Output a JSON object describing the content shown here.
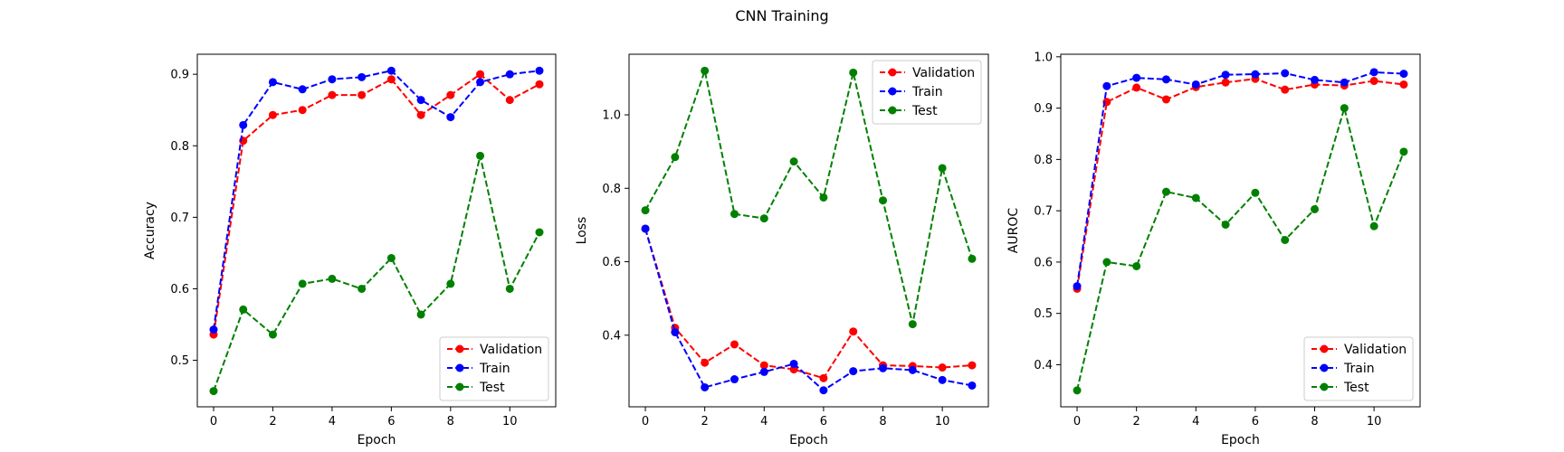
{
  "figure": {
    "title": "CNN Training"
  },
  "chart_data": [
    {
      "type": "line",
      "title": "",
      "xlabel": "Epoch",
      "ylabel": "Accuracy",
      "xlim": [
        -0.55,
        11.55
      ],
      "ylim": [
        0.435,
        0.928
      ],
      "xticks": [
        0,
        2,
        4,
        6,
        8,
        10
      ],
      "yticks": [
        0.5,
        0.6,
        0.7,
        0.8,
        0.9
      ],
      "ytick_labels": [
        "0.5",
        "0.6",
        "0.7",
        "0.8",
        "0.9"
      ],
      "legend": "lower-right",
      "grid": false,
      "x": [
        0,
        1,
        2,
        3,
        4,
        5,
        6,
        7,
        8,
        9,
        10,
        11
      ],
      "series": [
        {
          "name": "Validation",
          "color": "#ff0000",
          "values": [
            0.536,
            0.807,
            0.843,
            0.85,
            0.871,
            0.871,
            0.893,
            0.843,
            0.871,
            0.9,
            0.864,
            0.886
          ]
        },
        {
          "name": "Train",
          "color": "#0000ff",
          "values": [
            0.543,
            0.829,
            0.889,
            0.879,
            0.893,
            0.896,
            0.905,
            0.864,
            0.84,
            0.889,
            0.9,
            0.905
          ]
        },
        {
          "name": "Test",
          "color": "#008000",
          "values": [
            0.457,
            0.571,
            0.536,
            0.607,
            0.614,
            0.6,
            0.643,
            0.564,
            0.607,
            0.786,
            0.6,
            0.679
          ]
        }
      ]
    },
    {
      "type": "line",
      "title": "",
      "xlabel": "Epoch",
      "ylabel": "Loss",
      "xlim": [
        -0.55,
        11.55
      ],
      "ylim": [
        0.205,
        1.165
      ],
      "xticks": [
        0,
        2,
        4,
        6,
        8,
        10
      ],
      "yticks": [
        0.4,
        0.6,
        0.8,
        1.0
      ],
      "ytick_labels": [
        "0.4",
        "0.6",
        "0.8",
        "1.0"
      ],
      "legend": "upper-right",
      "grid": false,
      "x": [
        0,
        1,
        2,
        3,
        4,
        5,
        6,
        7,
        8,
        9,
        10,
        11
      ],
      "series": [
        {
          "name": "Validation",
          "color": "#ff0000",
          "values": [
            0.69,
            0.42,
            0.325,
            0.375,
            0.318,
            0.307,
            0.283,
            0.41,
            0.318,
            0.316,
            0.312,
            0.318
          ]
        },
        {
          "name": "Train",
          "color": "#0000ff",
          "values": [
            0.69,
            0.408,
            0.258,
            0.28,
            0.3,
            0.322,
            0.25,
            0.302,
            0.31,
            0.305,
            0.278,
            0.263
          ]
        },
        {
          "name": "Test",
          "color": "#008000",
          "values": [
            0.74,
            0.885,
            1.12,
            0.73,
            0.718,
            0.873,
            0.775,
            1.115,
            0.767,
            0.43,
            0.855,
            0.608
          ]
        }
      ]
    },
    {
      "type": "line",
      "title": "",
      "xlabel": "Epoch",
      "ylabel": "AUROC",
      "xlim": [
        -0.55,
        11.55
      ],
      "ylim": [
        0.318,
        1.005
      ],
      "xticks": [
        0,
        2,
        4,
        6,
        8,
        10
      ],
      "yticks": [
        0.4,
        0.5,
        0.6,
        0.7,
        0.8,
        0.9,
        1.0
      ],
      "ytick_labels": [
        "0.4",
        "0.5",
        "0.6",
        "0.7",
        "0.8",
        "0.9",
        "1.0"
      ],
      "legend": "lower-right",
      "grid": false,
      "x": [
        0,
        1,
        2,
        3,
        4,
        5,
        6,
        7,
        8,
        9,
        10,
        11
      ],
      "series": [
        {
          "name": "Validation",
          "color": "#ff0000",
          "values": [
            0.548,
            0.912,
            0.94,
            0.917,
            0.941,
            0.95,
            0.957,
            0.936,
            0.946,
            0.944,
            0.953,
            0.946
          ]
        },
        {
          "name": "Train",
          "color": "#0000ff",
          "values": [
            0.553,
            0.943,
            0.959,
            0.956,
            0.946,
            0.965,
            0.966,
            0.968,
            0.955,
            0.95,
            0.97,
            0.967
          ]
        },
        {
          "name": "Test",
          "color": "#008000",
          "values": [
            0.35,
            0.6,
            0.592,
            0.737,
            0.725,
            0.673,
            0.735,
            0.643,
            0.703,
            0.9,
            0.67,
            0.815
          ]
        }
      ]
    }
  ]
}
